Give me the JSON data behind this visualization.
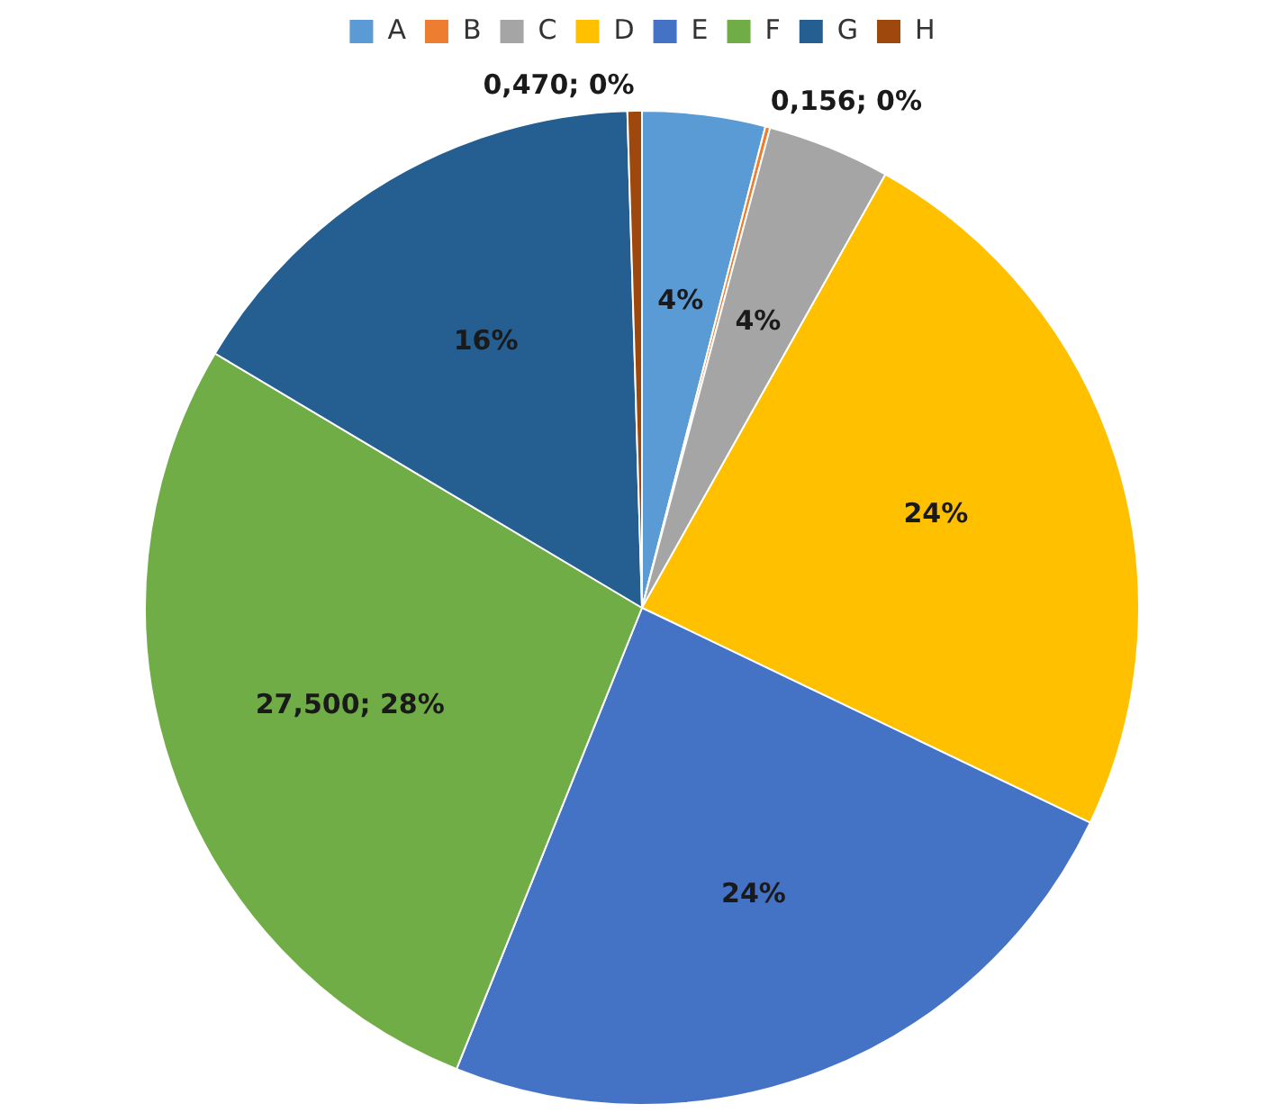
{
  "chart_data": {
    "type": "pie",
    "categories": [
      "A",
      "B",
      "C",
      "D",
      "E",
      "F",
      "G",
      "H"
    ],
    "values": [
      4,
      0.156,
      4,
      24,
      24,
      27.5,
      16,
      0.47
    ],
    "colors": [
      "#5b9bd5",
      "#ed7d31",
      "#a5a5a5",
      "#ffc000",
      "#4472c4",
      "#70ad47",
      "#255e91",
      "#9e480e"
    ],
    "value_labels": [
      "4%",
      "0,156; 0%",
      "4%",
      "24%",
      "24%",
      "27,500; 28%",
      "16%",
      "0,470; 0%"
    ],
    "legend": "top"
  }
}
